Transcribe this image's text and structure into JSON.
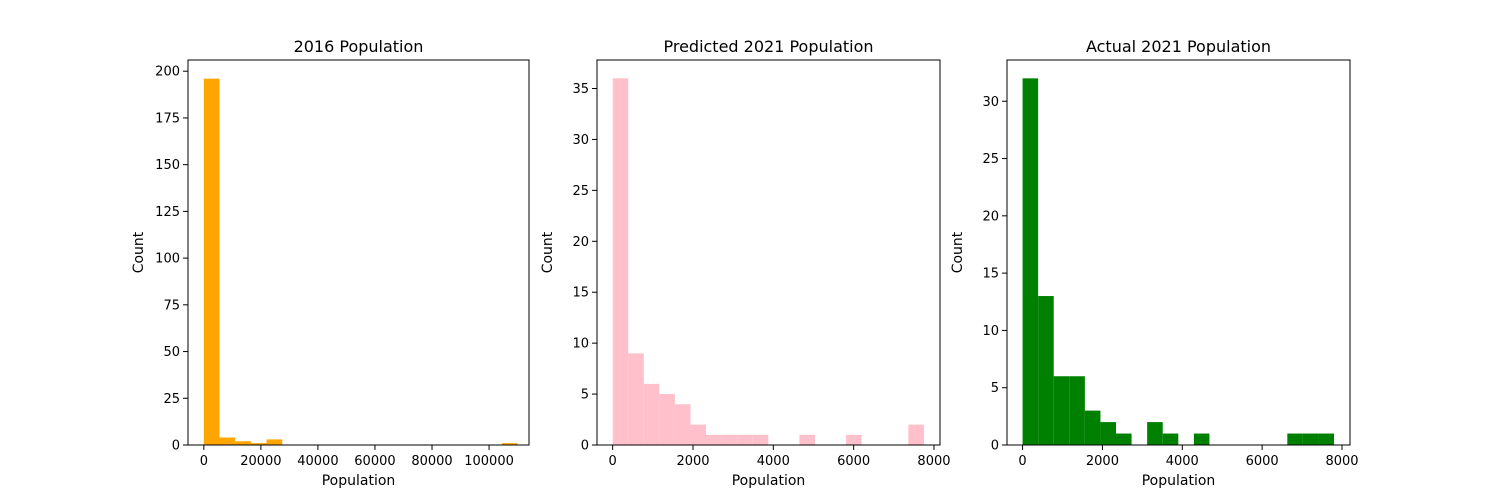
{
  "chart_data": [
    {
      "type": "bar",
      "title": "2016 Population",
      "xlabel": "Population",
      "ylabel": "Count",
      "color": "#FFA500",
      "xlim": [
        -5550,
        114000
      ],
      "ylim": [
        0,
        206
      ],
      "xticks": [
        0,
        20000,
        40000,
        60000,
        80000,
        100000
      ],
      "xtick_labels": [
        "0",
        "20000",
        "40000",
        "60000",
        "80000",
        "100000"
      ],
      "yticks": [
        0,
        25,
        50,
        75,
        100,
        125,
        150,
        175,
        200
      ],
      "ytick_labels": [
        "0",
        "25",
        "50",
        "75",
        "100",
        "125",
        "150",
        "175",
        "200"
      ],
      "bin_edges": [
        0,
        5500,
        11000,
        16500,
        22000,
        27500,
        33000,
        38500,
        44000,
        49500,
        55000,
        60500,
        66000,
        71500,
        77000,
        82500,
        88000,
        93500,
        99000,
        104500,
        110000
      ],
      "values": [
        196,
        4,
        2,
        1,
        3,
        0,
        0,
        0,
        0,
        0,
        0,
        0,
        0,
        0,
        0,
        0,
        0,
        0,
        0,
        1
      ]
    },
    {
      "type": "bar",
      "title": "Predicted 2021 Population",
      "xlabel": "Population",
      "ylabel": "Count",
      "color": "#FFC0CB",
      "xlim": [
        -390,
        8150
      ],
      "ylim": [
        0,
        37.8
      ],
      "xticks": [
        0,
        2000,
        4000,
        6000,
        8000
      ],
      "xtick_labels": [
        "0",
        "2000",
        "4000",
        "6000",
        "8000"
      ],
      "yticks": [
        0,
        5,
        10,
        15,
        20,
        25,
        30,
        35
      ],
      "ytick_labels": [
        "0",
        "5",
        "10",
        "15",
        "20",
        "25",
        "30",
        "35"
      ],
      "bin_edges": [
        0,
        387.5,
        775,
        1162.5,
        1550,
        1937.5,
        2325,
        2712.5,
        3100,
        3487.5,
        3875,
        4262.5,
        4650,
        5037.5,
        5425,
        5812.5,
        6200,
        6587.5,
        6975,
        7362.5,
        7750
      ],
      "values": [
        36,
        9,
        6,
        5,
        4,
        2,
        1,
        1,
        1,
        1,
        0,
        0,
        1,
        0,
        0,
        1,
        0,
        0,
        0,
        2
      ]
    },
    {
      "type": "bar",
      "title": "Actual 2021 Population",
      "xlabel": "Population",
      "ylabel": "Count",
      "color": "#008000",
      "xlim": [
        -390,
        8200
      ],
      "ylim": [
        0,
        33.6
      ],
      "xticks": [
        0,
        2000,
        4000,
        6000,
        8000
      ],
      "xtick_labels": [
        "0",
        "2000",
        "4000",
        "6000",
        "8000"
      ],
      "yticks": [
        0,
        5,
        10,
        15,
        20,
        25,
        30
      ],
      "ytick_labels": [
        "0",
        "5",
        "10",
        "15",
        "20",
        "25",
        "30"
      ],
      "bin_edges": [
        0,
        390,
        780,
        1170,
        1560,
        1950,
        2340,
        2730,
        3120,
        3510,
        3900,
        4290,
        4680,
        5070,
        5460,
        5850,
        6240,
        6630,
        7020,
        7410,
        7800
      ],
      "values": [
        32,
        13,
        6,
        6,
        3,
        2,
        1,
        0,
        2,
        1,
        0,
        1,
        0,
        0,
        0,
        0,
        0,
        1,
        1,
        1
      ]
    }
  ]
}
